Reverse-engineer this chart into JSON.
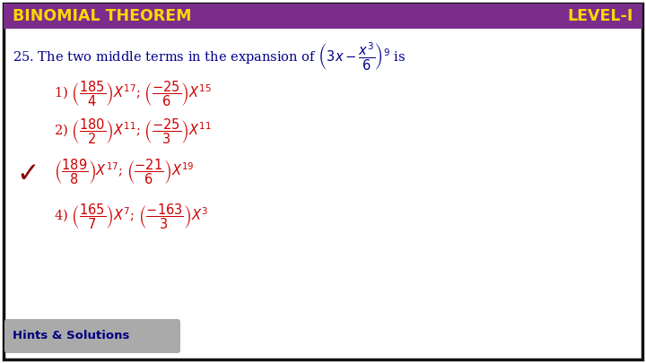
{
  "title_left": "BINOMIAL THEOREM",
  "title_right": "LEVEL-I",
  "header_bg": "#7B2D8B",
  "header_text_color": "#FFD700",
  "question_color": "#00008B",
  "option_color": "#CC0000",
  "checkmark_color": "#8B0000",
  "bg_color": "#FFFFFF",
  "border_color": "#111111",
  "hints_bg": "#AAAAAA",
  "hints_text": "Hints & Solutions",
  "hints_text_color": "#000080",
  "fig_w": 7.2,
  "fig_h": 4.05,
  "dpi": 100
}
